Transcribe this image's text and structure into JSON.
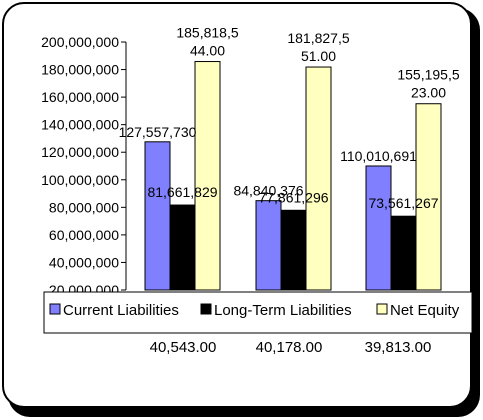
{
  "chart_data": {
    "type": "bar",
    "categories": [
      "40,543.00",
      "40,178.00",
      "39,813.00"
    ],
    "series": [
      {
        "name": "Current Liabilities",
        "color": "#8080ff",
        "values": [
          127557730,
          84840376,
          110010691
        ],
        "labels": [
          [
            "127,557,730"
          ],
          [
            "84,840,376"
          ],
          [
            "110,010,691"
          ]
        ]
      },
      {
        "name": "Long-Term Liabilities",
        "color": "#000000",
        "values": [
          81661829,
          77861296,
          73561267
        ],
        "labels": [
          [
            "81,661,829"
          ],
          [
            "77,861,296"
          ],
          [
            "73,561,267"
          ]
        ]
      },
      {
        "name": "Net Equity",
        "color": "#ffffc0",
        "values": [
          185818544,
          181827551,
          155195523
        ],
        "labels": [
          [
            "185,818,5",
            "44.00"
          ],
          [
            "181,827,5",
            "51.00"
          ],
          [
            "155,195,5",
            "23.00"
          ]
        ]
      }
    ],
    "yticks": [
      "20,000,000",
      "40,000,000",
      "60,000,000",
      "80,000,000",
      "100,000,000",
      "120,000,000",
      "140,000,000",
      "160,000,000",
      "180,000,000",
      "200,000,000"
    ],
    "ylim": [
      20000000,
      200000000
    ],
    "legend_position": "bottom"
  }
}
